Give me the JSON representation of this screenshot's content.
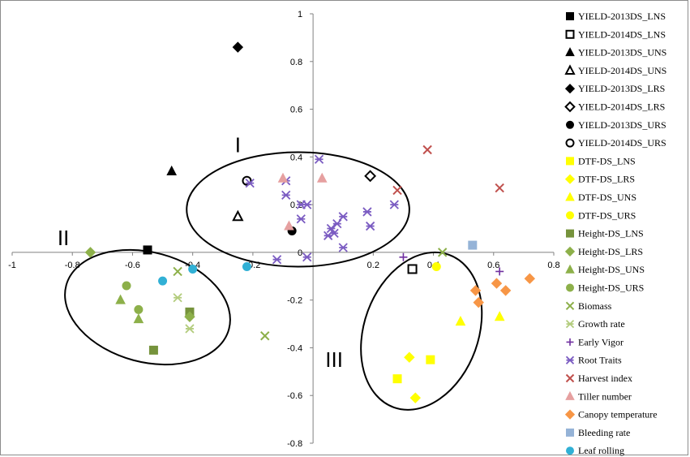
{
  "chart_data": {
    "type": "scatter",
    "title": "",
    "xlabel": "",
    "ylabel": "",
    "xlim": [
      -1,
      0.8
    ],
    "ylim": [
      -0.8,
      1
    ],
    "x_ticks": [
      "-1",
      "-0.8",
      "-0.6",
      "-0.4",
      "-0.2",
      "0",
      "0.2",
      "0.4",
      "0.6",
      "0.8"
    ],
    "y_ticks": [
      "1",
      "0.8",
      "0.6",
      "0.4",
      "0.2",
      "0",
      "-0.2",
      "-0.4",
      "-0.6",
      "-0.8"
    ],
    "grid": false,
    "legend_position": "right",
    "group_labels": [
      {
        "label": "I",
        "x": -0.25,
        "y": 0.42
      },
      {
        "label": "II",
        "x": -0.83,
        "y": 0.03
      },
      {
        "label": "III",
        "x": 0.07,
        "y": -0.48
      }
    ],
    "group_ellipses": [
      {
        "group": "I",
        "cx": -0.05,
        "cy": 0.18,
        "rx": 0.37,
        "ry": 0.24,
        "rotation": 0
      },
      {
        "group": "II",
        "cx": -0.55,
        "cy": -0.23,
        "rx": 0.28,
        "ry": 0.23,
        "rotation": 15
      },
      {
        "group": "III",
        "cx": 0.36,
        "cy": -0.33,
        "rx": 0.19,
        "ry": 0.34,
        "rotation": 20
      }
    ],
    "series": [
      {
        "name": "YIELD-2013DS_LNS",
        "marker": "square",
        "fill": true,
        "color": "#000000",
        "points": [
          [
            -0.55,
            0.01
          ]
        ]
      },
      {
        "name": "YIELD-2014DS_LNS",
        "marker": "square",
        "fill": false,
        "color": "#000000",
        "points": [
          [
            0.33,
            -0.07
          ]
        ]
      },
      {
        "name": "YIELD-2013DS_UNS",
        "marker": "triangle",
        "fill": true,
        "color": "#000000",
        "points": [
          [
            -0.47,
            0.34
          ]
        ]
      },
      {
        "name": "YIELD-2014DS_UNS",
        "marker": "triangle",
        "fill": false,
        "color": "#000000",
        "points": [
          [
            -0.25,
            0.15
          ]
        ]
      },
      {
        "name": "YIELD-2013DS_LRS",
        "marker": "diamond",
        "fill": true,
        "color": "#000000",
        "points": [
          [
            -0.25,
            0.86
          ]
        ]
      },
      {
        "name": "YIELD-2014DS_LRS",
        "marker": "diamond",
        "fill": false,
        "color": "#000000",
        "points": [
          [
            0.19,
            0.32
          ]
        ]
      },
      {
        "name": "YIELD-2013DS_URS",
        "marker": "circle",
        "fill": true,
        "color": "#000000",
        "points": [
          [
            -0.07,
            0.09
          ]
        ]
      },
      {
        "name": "YIELD-2014DS_URS",
        "marker": "circle",
        "fill": false,
        "color": "#000000",
        "points": [
          [
            -0.22,
            0.3
          ]
        ]
      },
      {
        "name": "DTF-DS_LNS",
        "marker": "square",
        "fill": true,
        "color": "#ffff00",
        "points": [
          [
            0.28,
            -0.53
          ],
          [
            0.39,
            -0.45
          ]
        ]
      },
      {
        "name": "DTF-DS_LRS",
        "marker": "diamond",
        "fill": true,
        "color": "#ffff00",
        "points": [
          [
            0.32,
            -0.44
          ],
          [
            0.34,
            -0.61
          ]
        ]
      },
      {
        "name": "DTF-DS_UNS",
        "marker": "triangle",
        "fill": true,
        "color": "#ffff00",
        "points": [
          [
            0.49,
            -0.29
          ],
          [
            0.62,
            -0.27
          ]
        ]
      },
      {
        "name": "DTF-DS_URS",
        "marker": "circle",
        "fill": true,
        "color": "#ffff00",
        "points": [
          [
            0.41,
            -0.06
          ]
        ]
      },
      {
        "name": "Height-DS_LNS",
        "marker": "square",
        "fill": true,
        "color": "#76933c",
        "points": [
          [
            -0.53,
            -0.41
          ],
          [
            -0.41,
            -0.25
          ]
        ]
      },
      {
        "name": "Height-DS_LRS",
        "marker": "diamond",
        "fill": true,
        "color": "#8db04a",
        "points": [
          [
            -0.74,
            0.0
          ],
          [
            -0.41,
            -0.27
          ]
        ]
      },
      {
        "name": "Height-DS_UNS",
        "marker": "triangle",
        "fill": true,
        "color": "#8db04a",
        "points": [
          [
            -0.64,
            -0.2
          ],
          [
            -0.58,
            -0.28
          ]
        ]
      },
      {
        "name": "Height-DS_URS",
        "marker": "circle",
        "fill": true,
        "color": "#8db04a",
        "points": [
          [
            -0.62,
            -0.14
          ],
          [
            -0.58,
            -0.24
          ]
        ]
      },
      {
        "name": "Biomass",
        "marker": "x",
        "fill": false,
        "color": "#8db04a",
        "points": [
          [
            -0.45,
            -0.08
          ],
          [
            -0.16,
            -0.35
          ],
          [
            0.43,
            0.0
          ]
        ]
      },
      {
        "name": "Growth rate",
        "marker": "star",
        "fill": false,
        "color": "#b3cc7d",
        "points": [
          [
            -0.45,
            -0.19
          ],
          [
            -0.41,
            -0.32
          ]
        ]
      },
      {
        "name": "Early Vigor",
        "marker": "plus",
        "fill": false,
        "color": "#7030a0",
        "points": [
          [
            0.3,
            -0.02
          ],
          [
            0.62,
            -0.08
          ]
        ]
      },
      {
        "name": "Root Traits",
        "marker": "star",
        "fill": false,
        "color": "#7b5cc2",
        "points": [
          [
            -0.21,
            0.29
          ],
          [
            -0.09,
            0.3
          ],
          [
            -0.09,
            0.24
          ],
          [
            -0.04,
            0.2
          ],
          [
            -0.02,
            0.2
          ],
          [
            -0.04,
            0.14
          ],
          [
            0.02,
            0.39
          ],
          [
            0.06,
            0.1
          ],
          [
            0.07,
            0.08
          ],
          [
            0.05,
            0.07
          ],
          [
            0.08,
            0.12
          ],
          [
            0.1,
            0.15
          ],
          [
            0.18,
            0.17
          ],
          [
            0.19,
            0.11
          ],
          [
            0.27,
            0.2
          ],
          [
            -0.12,
            -0.03
          ],
          [
            -0.02,
            -0.02
          ],
          [
            0.1,
            0.02
          ]
        ]
      },
      {
        "name": "Harvest index",
        "marker": "x",
        "fill": false,
        "color": "#c0504d",
        "points": [
          [
            0.38,
            0.43
          ],
          [
            0.28,
            0.26
          ],
          [
            0.62,
            0.27
          ]
        ]
      },
      {
        "name": "Tiller number",
        "marker": "triangle",
        "fill": true,
        "color": "#e6a0a0",
        "points": [
          [
            -0.1,
            0.31
          ],
          [
            0.03,
            0.31
          ],
          [
            -0.08,
            0.11
          ]
        ]
      },
      {
        "name": "Canopy temperature",
        "marker": "diamond",
        "fill": true,
        "color": "#f79646",
        "points": [
          [
            0.54,
            -0.16
          ],
          [
            0.55,
            -0.21
          ],
          [
            0.61,
            -0.13
          ],
          [
            0.64,
            -0.16
          ],
          [
            0.72,
            -0.11
          ]
        ]
      },
      {
        "name": "Bleeding rate",
        "marker": "square",
        "fill": true,
        "color": "#95b3d7",
        "points": [
          [
            0.53,
            0.03
          ]
        ]
      },
      {
        "name": "Leaf rolling",
        "marker": "circle",
        "fill": true,
        "color": "#31b0d5",
        "points": [
          [
            -0.5,
            -0.12
          ],
          [
            -0.4,
            -0.07
          ],
          [
            -0.22,
            -0.06
          ]
        ]
      }
    ]
  }
}
